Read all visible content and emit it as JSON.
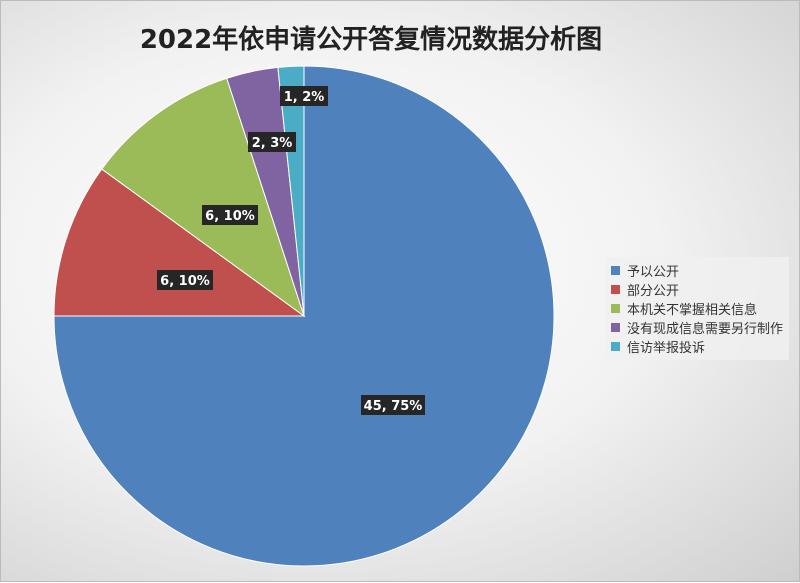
{
  "chart_data": {
    "type": "pie",
    "title": "2022年依申请公开答复情况数据分析图",
    "categories": [
      "予以公开",
      "部分公开",
      "本机关不掌握相关信息",
      "没有现成信息需要另行制作",
      "信访举报投诉"
    ],
    "values": [
      45,
      6,
      6,
      2,
      1
    ],
    "percents": [
      "75%",
      "10%",
      "10%",
      "3%",
      "2%"
    ],
    "colors": [
      "#4f81bd",
      "#c0504d",
      "#9bbb59",
      "#8064a2",
      "#4bacc6"
    ],
    "data_labels": [
      "45, 75%",
      "6, 10%",
      "6, 10%",
      "2, 3%",
      "1, 2%"
    ],
    "legend_position": "right"
  }
}
